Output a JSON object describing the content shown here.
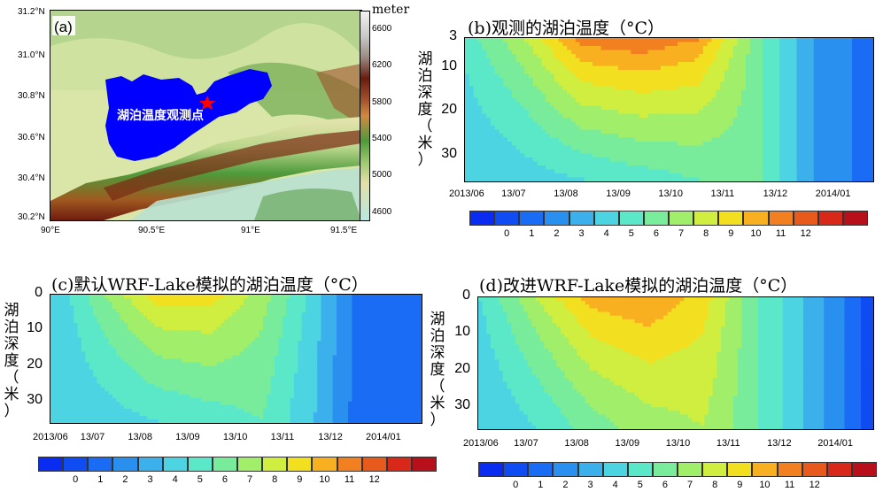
{
  "panel_a": {
    "label": "(a)",
    "lake_label": "湖泊温度观测点",
    "lon_ticks": [
      "90°E",
      "90.5°E",
      "91°E",
      "91.5°E"
    ],
    "lat_ticks": [
      "31.2°N",
      "31.0°N",
      "30.8°N",
      "30.6°N",
      "30.4°N",
      "30.2°N"
    ],
    "cbar_title": "meter",
    "cbar_ticks": [
      "6600",
      "6200",
      "5800",
      "5400",
      "5000",
      "4600"
    ],
    "lake_color": "#0000ff",
    "marker_color": "#ff0000"
  },
  "months": [
    "2013/06",
    "13/07",
    "13/08",
    "13/09",
    "13/10",
    "13/11",
    "13/12",
    "2014/01"
  ],
  "temp_levels": [
    "0",
    "1",
    "2",
    "3",
    "4",
    "5",
    "6",
    "7",
    "8",
    "9",
    "10",
    "11",
    "12"
  ],
  "panel_b": {
    "title": "(b)观测的湖泊温度（°C）",
    "ylabel": [
      "湖",
      "泊",
      "深",
      "度",
      "（",
      "米",
      "）"
    ],
    "yticks": [
      "3",
      "10",
      "20",
      "30"
    ]
  },
  "panel_c": {
    "title": "(c)默认WRF-Lake模拟的湖泊温度（°C）",
    "ylabel": [
      "湖",
      "泊",
      "深",
      "度",
      "（",
      "米",
      "）"
    ],
    "yticks": [
      "0",
      "10",
      "20",
      "30"
    ]
  },
  "panel_d": {
    "title": "(d)改进WRF-Lake模拟的湖泊温度（°C）",
    "ylabel": [
      "湖",
      "泊",
      "深",
      "度",
      "（",
      "米",
      "）"
    ],
    "yticks": [
      "0",
      "10",
      "20",
      "30"
    ]
  },
  "chart_data": [
    {
      "type": "heatmap",
      "title": "(b)观测的湖泊温度（°C）",
      "ylabel": "湖泊深度（米）",
      "x": [
        "2013/06",
        "13/07",
        "13/08",
        "13/09",
        "13/10",
        "13/11",
        "13/12",
        "2014/01"
      ],
      "ylim": [
        3,
        36
      ],
      "levels": [
        0,
        1,
        2,
        3,
        4,
        5,
        6,
        7,
        8,
        9,
        10,
        11,
        12
      ],
      "surface_temp": [
        5.5,
        8,
        11.5,
        12,
        11,
        6.5,
        3,
        1.5
      ],
      "deep_temp": [
        4,
        4.5,
        5,
        5.5,
        6,
        6.5,
        3,
        1.5
      ]
    },
    {
      "type": "heatmap",
      "title": "(c)默认WRF-Lake模拟的湖泊温度（°C）",
      "ylabel": "湖泊深度（米）",
      "x": [
        "2013/06",
        "13/07",
        "13/08",
        "13/09",
        "13/10",
        "13/11",
        "13/12",
        "2014/01"
      ],
      "ylim": [
        0,
        36
      ],
      "levels": [
        0,
        1,
        2,
        3,
        4,
        5,
        6,
        7,
        8,
        9,
        10,
        11,
        12
      ],
      "surface_temp": [
        4,
        7,
        9.5,
        9.5,
        7.5,
        4.5,
        1,
        1
      ],
      "deep_temp": [
        4,
        4.5,
        5,
        5.5,
        6,
        4,
        1,
        1
      ]
    },
    {
      "type": "heatmap",
      "title": "(d)改进WRF-Lake模拟的湖泊温度（°C）",
      "ylabel": "湖泊深度（米）",
      "x": [
        "2013/06",
        "13/07",
        "13/08",
        "13/09",
        "13/10",
        "13/11",
        "13/12",
        "2014/01"
      ],
      "ylim": [
        0,
        36
      ],
      "levels": [
        0,
        1,
        2,
        3,
        4,
        5,
        6,
        7,
        8,
        9,
        10,
        11,
        12
      ],
      "surface_temp": [
        5,
        8,
        10.5,
        11,
        9.5,
        6,
        3.5,
        0.5
      ],
      "deep_temp": [
        4,
        5,
        6.5,
        7.5,
        8,
        6,
        3.5,
        0.5
      ]
    }
  ]
}
